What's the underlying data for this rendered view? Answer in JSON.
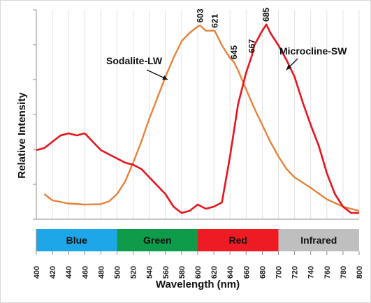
{
  "chart_data": {
    "type": "line",
    "xlabel": "Wavelength (nm)",
    "ylabel": "Relative Intensity",
    "xlim": [
      400,
      800
    ],
    "ylim": [
      0,
      1.0
    ],
    "x_ticks": [
      400,
      420,
      440,
      460,
      480,
      500,
      520,
      540,
      560,
      580,
      600,
      620,
      640,
      660,
      680,
      700,
      720,
      740,
      760,
      780,
      800
    ],
    "y_tick_labels_shown": false,
    "grid": "vertical",
    "legend": "none",
    "bands": [
      {
        "label": "Blue",
        "from": 400,
        "to": 500,
        "color": "#1ea7e8"
      },
      {
        "label": "Green",
        "from": 500,
        "to": 600,
        "color": "#0e9c4a"
      },
      {
        "label": "Red",
        "from": 600,
        "to": 700,
        "color": "#ee1b24"
      },
      {
        "label": "Infrared",
        "from": 700,
        "to": 800,
        "color": "#bfbfbf"
      }
    ],
    "series": [
      {
        "name": "Sodalite-LW",
        "color": "#e8823a",
        "x": [
          410,
          420,
          440,
          460,
          480,
          490,
          500,
          510,
          520,
          530,
          540,
          550,
          560,
          570,
          580,
          590,
          600,
          603,
          610,
          621,
          630,
          640,
          645,
          650,
          660,
          670,
          680,
          690,
          700,
          710,
          720,
          740,
          760,
          780,
          800
        ],
        "y": [
          0.12,
          0.09,
          0.075,
          0.07,
          0.072,
          0.085,
          0.12,
          0.18,
          0.27,
          0.37,
          0.48,
          0.58,
          0.68,
          0.77,
          0.85,
          0.89,
          0.92,
          0.925,
          0.9,
          0.9,
          0.83,
          0.77,
          0.75,
          0.71,
          0.62,
          0.53,
          0.45,
          0.37,
          0.3,
          0.24,
          0.2,
          0.15,
          0.095,
          0.06,
          0.04
        ]
      },
      {
        "name": "Microcline-SW",
        "color": "#e8141c",
        "x": [
          400,
          410,
          420,
          430,
          440,
          450,
          460,
          470,
          480,
          490,
          500,
          510,
          520,
          530,
          540,
          550,
          560,
          570,
          580,
          590,
          600,
          610,
          620,
          630,
          640,
          650,
          660,
          667,
          670,
          680,
          685,
          690,
          700,
          710,
          720,
          730,
          740,
          750,
          760,
          770,
          780,
          790,
          800
        ],
        "y": [
          0.33,
          0.34,
          0.37,
          0.4,
          0.41,
          0.4,
          0.41,
          0.37,
          0.33,
          0.31,
          0.29,
          0.27,
          0.26,
          0.24,
          0.2,
          0.16,
          0.12,
          0.06,
          0.03,
          0.04,
          0.07,
          0.05,
          0.06,
          0.08,
          0.3,
          0.55,
          0.7,
          0.78,
          0.83,
          0.9,
          0.93,
          0.89,
          0.83,
          0.76,
          0.68,
          0.56,
          0.45,
          0.35,
          0.22,
          0.12,
          0.06,
          0.03,
          0.03
        ]
      }
    ],
    "series_labels": [
      {
        "text": "Sodalite-LW",
        "series": "Sodalite-LW"
      },
      {
        "text": "Microcline-SW",
        "series": "Microcline-SW"
      }
    ],
    "peak_labels": [
      {
        "text": "603",
        "x": 603,
        "series": "Sodalite-LW"
      },
      {
        "text": "621",
        "x": 621,
        "series": "Sodalite-LW"
      },
      {
        "text": "645",
        "x": 645,
        "series": "Sodalite-LW"
      },
      {
        "text": "667",
        "x": 667,
        "series": "Microcline-SW"
      },
      {
        "text": "685",
        "x": 685,
        "series": "Microcline-SW"
      }
    ]
  }
}
